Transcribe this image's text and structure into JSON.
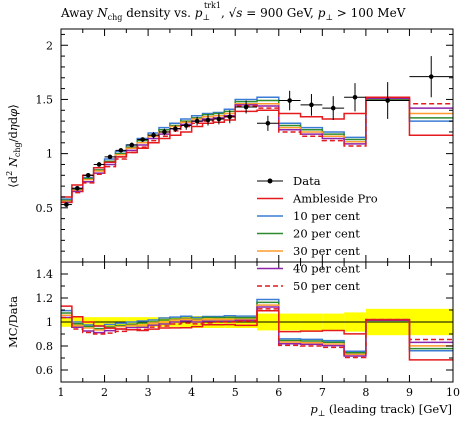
{
  "chart_data": {
    "type": "line",
    "title": "Away N_chg density vs. p⊥^trk1, √s = 900 GeV, p⊥ > 100 MeV",
    "xlabel": "p⊥ (leading track) [GeV]",
    "ylabel": "⟨d²N_chg/dηdφ⟩",
    "ratio_ylabel": "MC/Data",
    "xlim": [
      1,
      10
    ],
    "ylim": [
      0,
      2.15
    ],
    "ratio_ylim": [
      0.5,
      1.5
    ],
    "x_ticks": [
      "1",
      "2",
      "3",
      "4",
      "5",
      "6",
      "7",
      "8",
      "9",
      "10"
    ],
    "y_ticks": [
      "0.5",
      "1",
      "1.5",
      "2"
    ],
    "ratio_y_ticks": [
      "0.6",
      "0.8",
      "1",
      "1.2",
      "1.4"
    ],
    "bin_edges": [
      1.0,
      1.25,
      1.5,
      1.75,
      2.0,
      2.25,
      2.5,
      2.75,
      3.0,
      3.25,
      3.5,
      3.75,
      4.0,
      4.25,
      4.5,
      4.75,
      5.0,
      5.5,
      6.0,
      6.5,
      7.0,
      7.5,
      8.0,
      9.0,
      10.0
    ],
    "data": {
      "name": "Data",
      "color": "#000000",
      "x": [
        1.125,
        1.375,
        1.625,
        1.875,
        2.125,
        2.375,
        2.625,
        2.875,
        3.125,
        3.375,
        3.625,
        3.875,
        4.125,
        4.375,
        4.625,
        4.875,
        5.25,
        5.75,
        6.25,
        6.75,
        7.25,
        7.75,
        8.5,
        9.5
      ],
      "y": [
        0.53,
        0.68,
        0.8,
        0.9,
        0.97,
        1.03,
        1.08,
        1.13,
        1.17,
        1.2,
        1.23,
        1.26,
        1.3,
        1.31,
        1.32,
        1.34,
        1.43,
        1.28,
        1.49,
        1.45,
        1.42,
        1.52,
        1.49,
        1.71
      ],
      "err": [
        0.02,
        0.02,
        0.02,
        0.02,
        0.02,
        0.02,
        0.02,
        0.02,
        0.03,
        0.03,
        0.03,
        0.04,
        0.04,
        0.05,
        0.05,
        0.06,
        0.06,
        0.07,
        0.09,
        0.1,
        0.11,
        0.13,
        0.17,
        0.19
      ],
      "ratio_band": [
        0.04,
        0.04,
        0.04,
        0.04,
        0.04,
        0.04,
        0.04,
        0.04,
        0.04,
        0.04,
        0.04,
        0.05,
        0.05,
        0.05,
        0.05,
        0.05,
        0.05,
        0.07,
        0.07,
        0.07,
        0.07,
        0.08,
        0.11,
        0.11
      ]
    },
    "series": [
      {
        "name": "Ambleside Pro",
        "color": "#e41a1c",
        "dashed": false,
        "order": 5,
        "values": [
          0.6,
          0.71,
          0.8,
          0.87,
          0.92,
          0.97,
          1.01,
          1.05,
          1.1,
          1.14,
          1.17,
          1.2,
          1.25,
          1.28,
          1.29,
          1.31,
          1.39,
          1.4,
          1.37,
          1.34,
          1.32,
          1.37,
          1.52,
          1.17
        ]
      },
      {
        "name": "10 per cent",
        "color": "#3a7bd5",
        "dashed": false,
        "order": 0,
        "values": [
          0.58,
          0.68,
          0.78,
          0.87,
          0.95,
          1.02,
          1.08,
          1.14,
          1.19,
          1.24,
          1.28,
          1.32,
          1.35,
          1.37,
          1.38,
          1.41,
          1.5,
          1.52,
          1.28,
          1.24,
          1.2,
          1.15,
          1.52,
          1.3
        ]
      },
      {
        "name": "20 per cent",
        "color": "#2e8b2e",
        "dashed": false,
        "order": 1,
        "values": [
          0.57,
          0.67,
          0.77,
          0.85,
          0.93,
          1.0,
          1.06,
          1.12,
          1.17,
          1.22,
          1.26,
          1.3,
          1.33,
          1.36,
          1.37,
          1.39,
          1.48,
          1.49,
          1.26,
          1.22,
          1.18,
          1.13,
          1.5,
          1.33
        ]
      },
      {
        "name": "30 per cent",
        "color": "#ff9b2f",
        "dashed": false,
        "order": 2,
        "values": [
          0.56,
          0.66,
          0.76,
          0.84,
          0.92,
          0.99,
          1.05,
          1.1,
          1.16,
          1.2,
          1.25,
          1.29,
          1.32,
          1.34,
          1.35,
          1.37,
          1.46,
          1.46,
          1.24,
          1.2,
          1.16,
          1.11,
          1.51,
          1.37
        ]
      },
      {
        "name": "40 per cent",
        "color": "#8e24aa",
        "dashed": false,
        "order": 3,
        "values": [
          0.55,
          0.65,
          0.74,
          0.82,
          0.9,
          0.97,
          1.03,
          1.08,
          1.14,
          1.18,
          1.23,
          1.27,
          1.3,
          1.32,
          1.33,
          1.35,
          1.45,
          1.44,
          1.22,
          1.18,
          1.14,
          1.09,
          1.51,
          1.42
        ]
      },
      {
        "name": "50 per cent",
        "color": "#e41a1c",
        "dashed": true,
        "order": 4,
        "values": [
          0.55,
          0.64,
          0.73,
          0.81,
          0.88,
          0.95,
          1.01,
          1.06,
          1.12,
          1.16,
          1.21,
          1.25,
          1.28,
          1.3,
          1.32,
          1.34,
          1.44,
          1.42,
          1.2,
          1.16,
          1.12,
          1.07,
          1.52,
          1.46
        ]
      }
    ],
    "legend_position": "middle-right",
    "grid": false
  }
}
